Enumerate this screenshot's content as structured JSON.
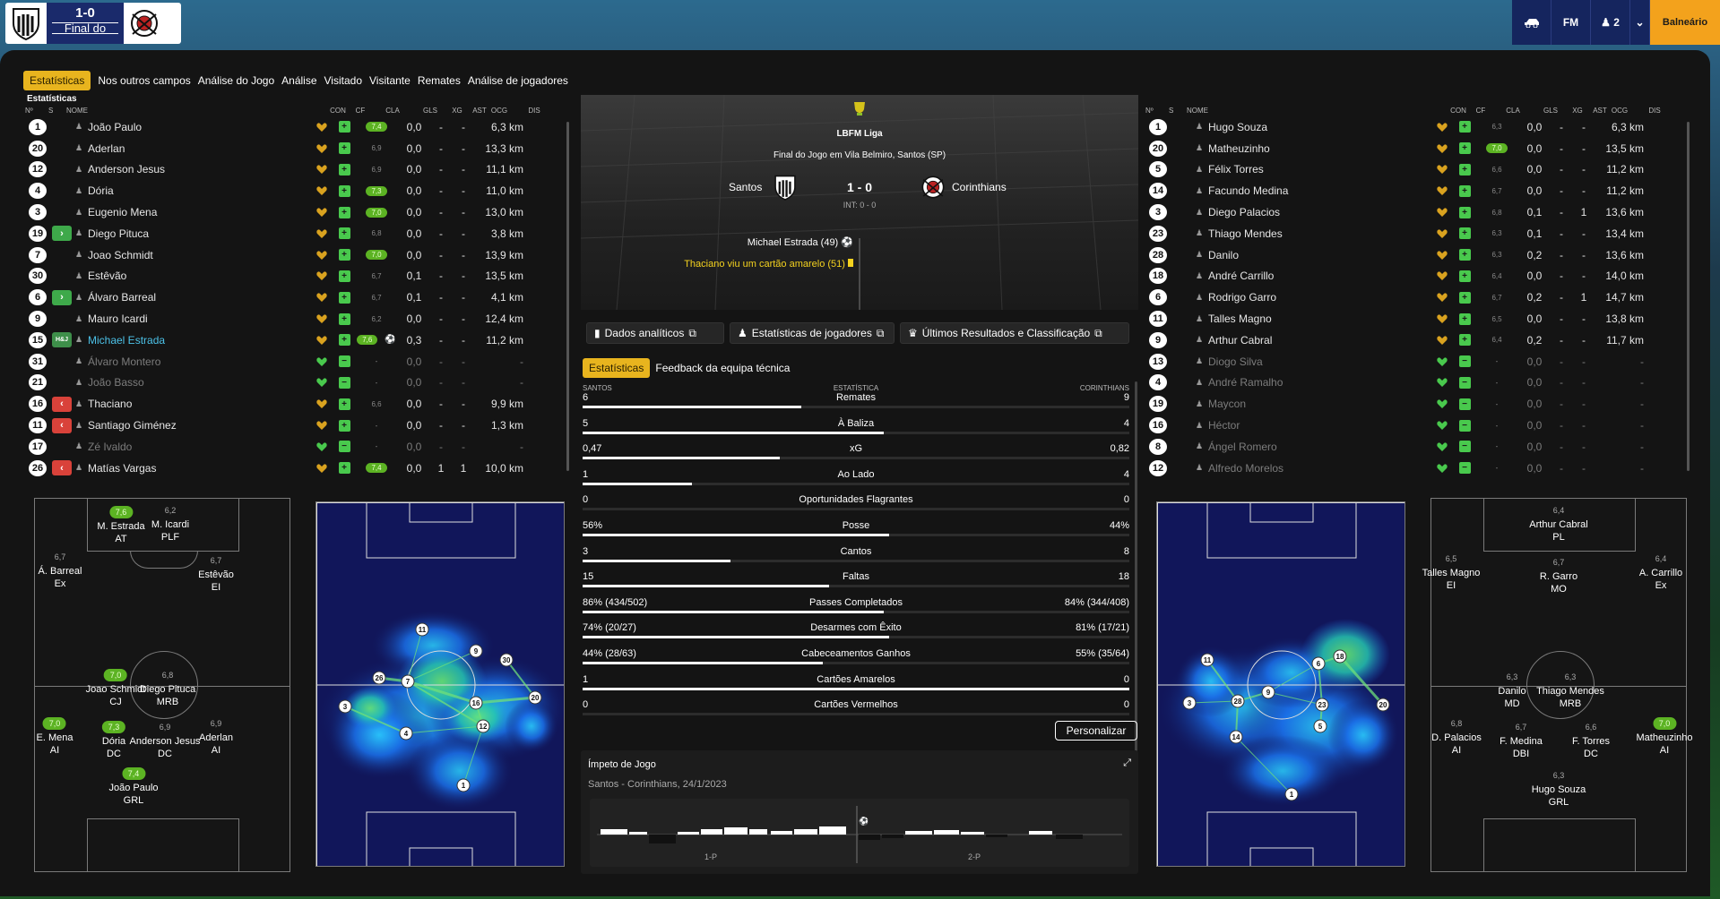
{
  "top": {
    "score": "1-0",
    "status": "Final do Jogo",
    "buttons": [
      "FM",
      "2",
      "Balneário"
    ]
  },
  "tabs": [
    "Estatísticas",
    "Nos outros campos",
    "Análise do Jogo",
    "Análise",
    "Visitado",
    "Visitante",
    "Remates",
    "Análise de jogadores"
  ],
  "table_label": "Estatísticas",
  "headers": [
    "Nº",
    "S",
    "NOME",
    "CON",
    "CF",
    "CLA",
    "GLS",
    "XG",
    "AST",
    "OCG",
    "DIS"
  ],
  "home_players": [
    {
      "n": "1",
      "name": "João Paulo",
      "rating": "7,4",
      "rg": true,
      "gls": "0,0",
      "ast": "-",
      "ocg": "-",
      "dis": "6,3 km"
    },
    {
      "n": "20",
      "name": "Aderlan",
      "rating": "6,9",
      "gls": "0,0",
      "ast": "-",
      "ocg": "-",
      "dis": "13,3 km"
    },
    {
      "n": "12",
      "name": "Anderson Jesus",
      "rating": "6,9",
      "gls": "0,0",
      "ast": "-",
      "ocg": "-",
      "dis": "11,1 km"
    },
    {
      "n": "4",
      "name": "Dória",
      "rating": "7,3",
      "rg": true,
      "gls": "0,0",
      "ast": "-",
      "ocg": "-",
      "dis": "11,0 km"
    },
    {
      "n": "3",
      "name": "Eugenio Mena",
      "rating": "7,0",
      "rg": true,
      "gls": "0,0",
      "ast": "-",
      "ocg": "-",
      "dis": "13,0 km"
    },
    {
      "n": "19",
      "sub": "in",
      "name": "Diego Pituca",
      "rating": "6,8",
      "gls": "0,0",
      "ast": "-",
      "ocg": "-",
      "dis": "3,8 km"
    },
    {
      "n": "7",
      "name": "Joao Schmidt",
      "rating": "7,0",
      "rg": true,
      "gls": "0,0",
      "ast": "-",
      "ocg": "-",
      "dis": "13,9 km"
    },
    {
      "n": "30",
      "name": "Estêvão",
      "rating": "6,7",
      "gls": "0,1",
      "ast": "-",
      "ocg": "-",
      "dis": "13,5 km"
    },
    {
      "n": "6",
      "sub": "in",
      "name": "Álvaro Barreal",
      "rating": "6,7",
      "gls": "0,1",
      "ast": "-",
      "ocg": "-",
      "dis": "4,1 km"
    },
    {
      "n": "9",
      "name": "Mauro Icardi",
      "rating": "6,2",
      "gls": "0,0",
      "ast": "-",
      "ocg": "-",
      "dis": "12,4 km"
    },
    {
      "n": "15",
      "sub": "hl",
      "subtxt": "H&J",
      "name": "Michael Estrada",
      "rating": "7,6",
      "rg": true,
      "ball": true,
      "gls": "0,3",
      "ast": "-",
      "ocg": "-",
      "dis": "11,2 km",
      "hl": true
    },
    {
      "n": "31",
      "name": "Álvaro Montero",
      "rating": "-",
      "gls": "0,0",
      "ast": "-",
      "ocg": "-",
      "dis": "-",
      "ghost": true
    },
    {
      "n": "21",
      "name": "João Basso",
      "rating": "-",
      "gls": "0,0",
      "ast": "-",
      "ocg": "-",
      "dis": "-",
      "ghost": true
    },
    {
      "n": "16",
      "sub": "out",
      "name": "Thaciano",
      "rating": "6,6",
      "gls": "0,0",
      "ast": "-",
      "ocg": "-",
      "dis": "9,9 km"
    },
    {
      "n": "11",
      "sub": "out",
      "name": "Santiago Giménez",
      "rating": "-",
      "gls": "0,0",
      "ast": "-",
      "ocg": "-",
      "dis": "1,3 km"
    },
    {
      "n": "17",
      "name": "Zé Ivaldo",
      "rating": "-",
      "gls": "0,0",
      "ast": "-",
      "ocg": "-",
      "dis": "-",
      "ghost": true
    },
    {
      "n": "26",
      "sub": "out",
      "name": "Matías Vargas",
      "rating": "7,4",
      "rg": true,
      "gls": "0,0",
      "ast": "1",
      "ocg": "1",
      "dis": "10,0 km"
    }
  ],
  "away_players": [
    {
      "n": "1",
      "name": "Hugo Souza",
      "rating": "6,3",
      "gls": "0,0",
      "ast": "-",
      "ocg": "-",
      "dis": "6,3 km"
    },
    {
      "n": "20",
      "name": "Matheuzinho",
      "rating": "7,0",
      "rg": true,
      "gls": "0,0",
      "ast": "-",
      "ocg": "-",
      "dis": "13,5 km"
    },
    {
      "n": "5",
      "name": "Félix Torres",
      "rating": "6,6",
      "gls": "0,0",
      "ast": "-",
      "ocg": "-",
      "dis": "11,2 km"
    },
    {
      "n": "14",
      "name": "Facundo Medina",
      "rating": "6,7",
      "gls": "0,0",
      "ast": "-",
      "ocg": "-",
      "dis": "11,2 km"
    },
    {
      "n": "3",
      "name": "Diego Palacios",
      "rating": "6,8",
      "gls": "0,1",
      "ast": "-",
      "ocg": "1",
      "dis": "13,6 km"
    },
    {
      "n": "23",
      "name": "Thiago Mendes",
      "rating": "6,3",
      "gls": "0,1",
      "ast": "-",
      "ocg": "-",
      "dis": "13,4 km"
    },
    {
      "n": "28",
      "name": "Danilo",
      "rating": "6,3",
      "gls": "0,2",
      "ast": "-",
      "ocg": "-",
      "dis": "13,6 km"
    },
    {
      "n": "18",
      "name": "André Carrillo",
      "rating": "6,4",
      "gls": "0,0",
      "ast": "-",
      "ocg": "-",
      "dis": "14,0 km"
    },
    {
      "n": "6",
      "name": "Rodrigo Garro",
      "rating": "6,7",
      "gls": "0,2",
      "ast": "-",
      "ocg": "1",
      "dis": "14,7 km"
    },
    {
      "n": "11",
      "name": "Talles Magno",
      "rating": "6,5",
      "gls": "0,0",
      "ast": "-",
      "ocg": "-",
      "dis": "13,8 km"
    },
    {
      "n": "9",
      "name": "Arthur Cabral",
      "rating": "6,4",
      "gls": "0,2",
      "ast": "-",
      "ocg": "-",
      "dis": "11,7 km"
    },
    {
      "n": "13",
      "name": "Diogo Silva",
      "rating": "-",
      "gls": "0,0",
      "ast": "-",
      "ocg": "-",
      "dis": "-",
      "ghost": true
    },
    {
      "n": "4",
      "name": "André Ramalho",
      "rating": "-",
      "gls": "0,0",
      "ast": "-",
      "ocg": "-",
      "dis": "-",
      "ghost": true
    },
    {
      "n": "19",
      "name": "Maycon",
      "rating": "-",
      "gls": "0,0",
      "ast": "-",
      "ocg": "-",
      "dis": "-",
      "ghost": true
    },
    {
      "n": "16",
      "name": "Héctor",
      "rating": "-",
      "gls": "0,0",
      "ast": "-",
      "ocg": "-",
      "dis": "-",
      "ghost": true
    },
    {
      "n": "8",
      "name": "Ángel Romero",
      "rating": "-",
      "gls": "0,0",
      "ast": "-",
      "ocg": "-",
      "dis": "-",
      "ghost": true
    },
    {
      "n": "12",
      "name": "Alfredo Morelos",
      "rating": "-",
      "gls": "0,0",
      "ast": "-",
      "ocg": "-",
      "dis": "-",
      "ghost": true
    }
  ],
  "match": {
    "league": "LBFM Liga",
    "subtitle": "Final do Jogo em Vila Belmiro, Santos (SP)",
    "home": "Santos",
    "away": "Corinthians",
    "score": "1 - 0",
    "ht": "INT: 0 - 0",
    "event1": "Michael Estrada (49)",
    "event2": "Thaciano viu um cartão amarelo (51)"
  },
  "buttons": {
    "analytics": "Dados analíticos",
    "player_stats": "Estatísticas de jogadores",
    "results": "Últimos Resultados e Classificação",
    "customize": "Personalizar"
  },
  "subtabs": [
    "Estatísticas",
    "Feedback da equipa técnica"
  ],
  "stats_head": {
    "home": "SANTOS",
    "mid": "ESTATÍSTICA",
    "away": "CORINTHIANS"
  },
  "stats": [
    {
      "l": "6",
      "name": "Remates",
      "r": "9",
      "pct": 0.4
    },
    {
      "l": "5",
      "name": "À Baliza",
      "r": "4",
      "pct": 0.55
    },
    {
      "l": "0,47",
      "name": "xG",
      "r": "0,82",
      "pct": 0.36
    },
    {
      "l": "1",
      "name": "Ao Lado",
      "r": "4",
      "pct": 0.2
    },
    {
      "l": "0",
      "name": "Oportunidades Flagrantes",
      "r": "0",
      "pct": 0.0
    },
    {
      "l": "56%",
      "name": "Posse",
      "r": "44%",
      "pct": 0.56
    },
    {
      "l": "3",
      "name": "Cantos",
      "r": "8",
      "pct": 0.27
    },
    {
      "l": "15",
      "name": "Faltas",
      "r": "18",
      "pct": 0.45
    },
    {
      "l": "86% (434/502)",
      "name": "Passes Completados",
      "r": "84% (344/408)",
      "pct": 0.55
    },
    {
      "l": "74% (20/27)",
      "name": "Desarmes com Êxito",
      "r": "81% (17/21)",
      "pct": 0.56
    },
    {
      "l": "44% (28/63)",
      "name": "Cabeceamentos Ganhos",
      "r": "55% (35/64)",
      "pct": 0.44
    },
    {
      "l": "1",
      "name": "Cartões Amarelos",
      "r": "0",
      "pct": 1.0
    },
    {
      "l": "0",
      "name": "Cartões Vermelhos",
      "r": "0",
      "pct": 0.0
    }
  ],
  "impeto": {
    "title": "Ímpeto de Jogo",
    "subtitle": "Santos - Corinthians, 24/1/2023",
    "p1": "1-P",
    "p2": "2-P"
  },
  "home_formation": [
    {
      "name": "M. Estrada",
      "pos": "AT",
      "rt": "7,6",
      "g": true
    },
    {
      "name": "M. Icardi",
      "pos": "PLF",
      "rt": "6,2"
    },
    {
      "name": "Á. Barreal",
      "pos": "Ex",
      "rt": "6,7"
    },
    {
      "name": "Estêvão",
      "pos": "EI",
      "rt": "6,7"
    },
    {
      "name": "Joao Schmidt",
      "pos": "CJ",
      "rt": "7,0",
      "g": true
    },
    {
      "name": "Diego Pituca",
      "pos": "MRB",
      "rt": "6,8"
    },
    {
      "name": "E. Mena",
      "pos": "AI",
      "rt": "7,0",
      "g": true
    },
    {
      "name": "Dória",
      "pos": "DC",
      "rt": "7,3",
      "g": true
    },
    {
      "name": "Anderson Jesus",
      "pos": "DC",
      "rt": "6,9"
    },
    {
      "name": "Aderlan",
      "pos": "AI",
      "rt": "6,9"
    },
    {
      "name": "João Paulo",
      "pos": "GRL",
      "rt": "7,4",
      "g": true
    }
  ],
  "away_formation": [
    {
      "name": "Arthur Cabral",
      "pos": "PL",
      "rt": "6,4"
    },
    {
      "name": "Talles Magno",
      "pos": "EI",
      "rt": "6,5"
    },
    {
      "name": "R. Garro",
      "pos": "MO",
      "rt": "6,7"
    },
    {
      "name": "A. Carrillo",
      "pos": "Ex",
      "rt": "6,4"
    },
    {
      "name": "Danilo",
      "pos": "MD",
      "rt": "6,3"
    },
    {
      "name": "Thiago Mendes",
      "pos": "MRB",
      "rt": "6,3"
    },
    {
      "name": "D. Palacios",
      "pos": "AI",
      "rt": "6,8"
    },
    {
      "name": "F. Medina",
      "pos": "DBI",
      "rt": "6,7"
    },
    {
      "name": "F. Torres",
      "pos": "DC",
      "rt": "6,6"
    },
    {
      "name": "Matheuzinho",
      "pos": "AI",
      "rt": "7,0",
      "g": true
    },
    {
      "name": "Hugo Souza",
      "pos": "GRL",
      "rt": "6,3"
    }
  ],
  "home_nodes": [
    "11",
    "9",
    "30",
    "26",
    "7",
    "20",
    "16",
    "3",
    "4",
    "12",
    "1"
  ],
  "away_nodes": [
    "11",
    "6",
    "18",
    "9",
    "28",
    "23",
    "3",
    "20",
    "5",
    "14",
    "1"
  ]
}
